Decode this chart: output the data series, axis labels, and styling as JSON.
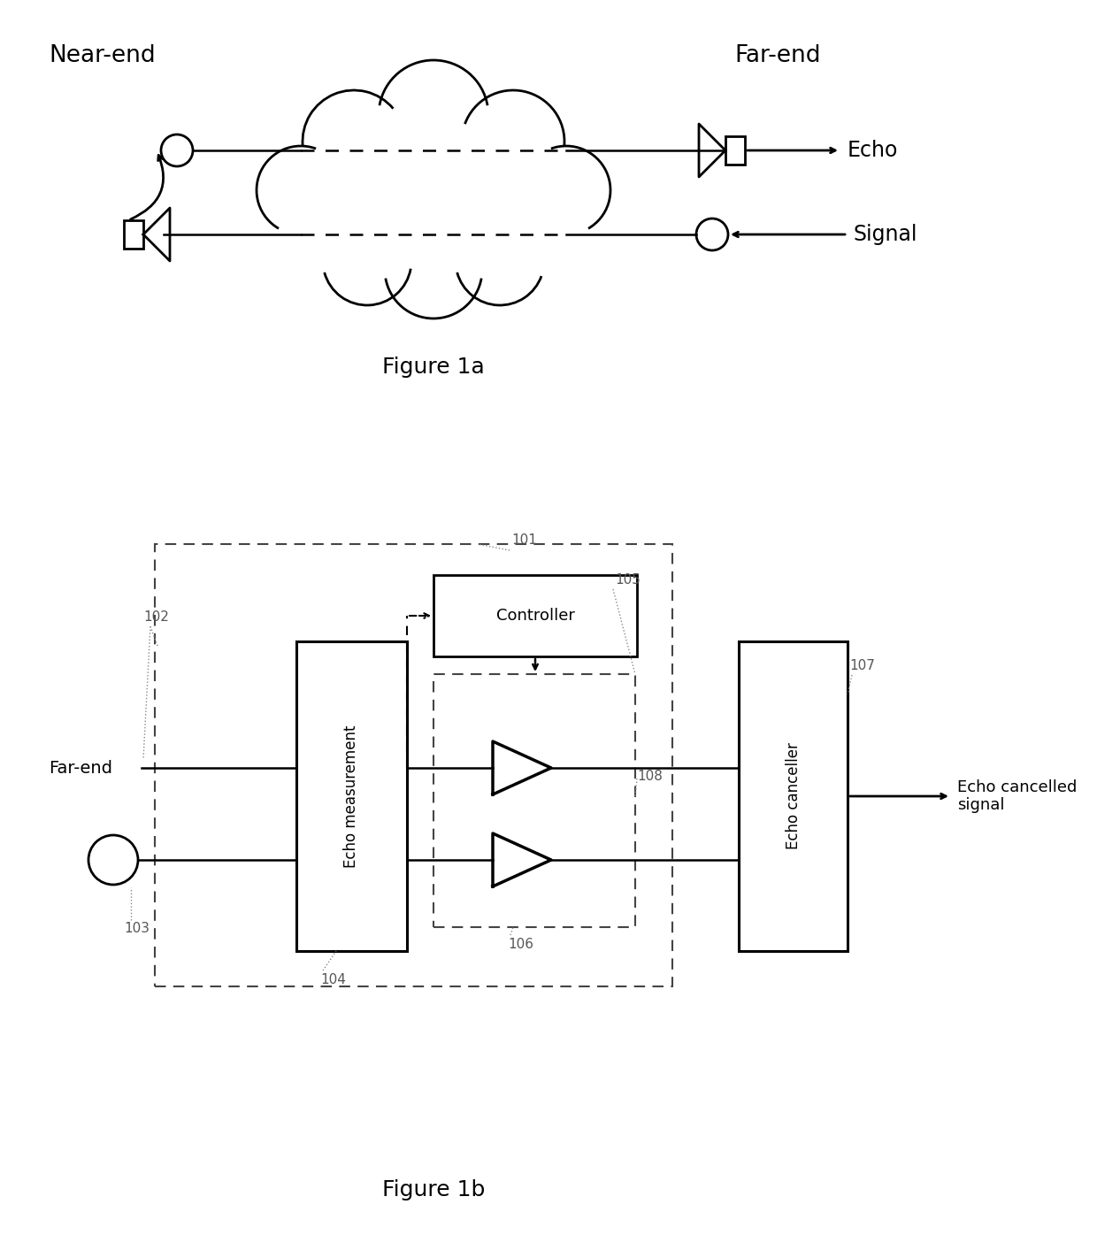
{
  "fig_width": 12.4,
  "fig_height": 13.96,
  "bg_color": "#ffffff",
  "fig1a_title": "Figure 1a",
  "fig1b_title": "Figure 1b",
  "near_end_label": "Near-end",
  "far_end_label": "Far-end",
  "echo_label": "Echo",
  "signal_label": "Signal",
  "far_end_input_label": "Far-end",
  "echo_measurement_label": "Echo measurement",
  "controller_label": "Controller",
  "echo_canceller_label": "Echo canceller",
  "echo_cancelled_signal_label": "Echo cancelled\nsignal",
  "label_101": "101",
  "label_102": "102",
  "label_103": "103",
  "label_104": "104",
  "label_105": "105",
  "label_106": "106",
  "label_107": "107",
  "label_108": "108"
}
